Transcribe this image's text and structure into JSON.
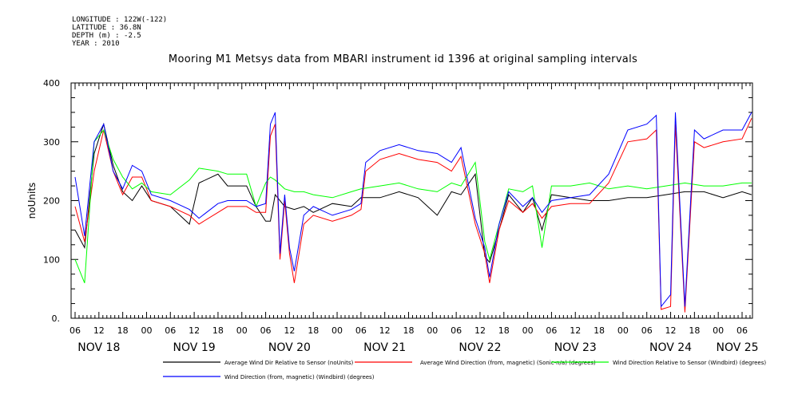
{
  "meta": {
    "longitude": "LONGITUDE : 122W(-122)",
    "latitude": "LATITUDE : 36.8N",
    "depth": "DEPTH (m) : -2.5",
    "year": "YEAR : 2010"
  },
  "chart_data": {
    "type": "line",
    "title": "Mooring M1 Metsys data from MBARI instrument id 1396 at original sampling intervals",
    "ylabel": "noUnits",
    "ylim": [
      0,
      400
    ],
    "yticks": [
      0,
      100,
      200,
      300,
      400
    ],
    "xlim": [
      0,
      7.2
    ],
    "hour_ticks": [
      {
        "x": 0.0,
        "label": "06"
      },
      {
        "x": 0.25,
        "label": "12"
      },
      {
        "x": 0.5,
        "label": "18"
      },
      {
        "x": 0.75,
        "label": "00"
      },
      {
        "x": 1.0,
        "label": "06"
      },
      {
        "x": 1.25,
        "label": "12"
      },
      {
        "x": 1.5,
        "label": "18"
      },
      {
        "x": 1.75,
        "label": "00"
      },
      {
        "x": 2.0,
        "label": "06"
      },
      {
        "x": 2.25,
        "label": "12"
      },
      {
        "x": 2.5,
        "label": "18"
      },
      {
        "x": 2.75,
        "label": "00"
      },
      {
        "x": 3.0,
        "label": "06"
      },
      {
        "x": 3.25,
        "label": "12"
      },
      {
        "x": 3.5,
        "label": "18"
      },
      {
        "x": 3.75,
        "label": "00"
      },
      {
        "x": 4.0,
        "label": "06"
      },
      {
        "x": 4.25,
        "label": "12"
      },
      {
        "x": 4.5,
        "label": "18"
      },
      {
        "x": 4.75,
        "label": "00"
      },
      {
        "x": 5.0,
        "label": "06"
      },
      {
        "x": 5.25,
        "label": "12"
      },
      {
        "x": 5.5,
        "label": "18"
      },
      {
        "x": 5.75,
        "label": "00"
      },
      {
        "x": 6.0,
        "label": "06"
      },
      {
        "x": 6.25,
        "label": "12"
      },
      {
        "x": 6.5,
        "label": "18"
      },
      {
        "x": 6.75,
        "label": "00"
      },
      {
        "x": 7.0,
        "label": "06"
      }
    ],
    "day_labels": [
      {
        "x": 0.25,
        "label": "NOV 18"
      },
      {
        "x": 1.25,
        "label": "NOV 19"
      },
      {
        "x": 2.25,
        "label": "NOV 20"
      },
      {
        "x": 3.25,
        "label": "NOV 21"
      },
      {
        "x": 4.25,
        "label": "NOV 22"
      },
      {
        "x": 5.25,
        "label": "NOV 23"
      },
      {
        "x": 6.25,
        "label": "NOV 24"
      },
      {
        "x": 6.95,
        "label": "NOV 25"
      }
    ],
    "series": [
      {
        "name": "Average Wind Dir Relative to Sensor (noUnits)",
        "color": "#000000",
        "x": [
          0.0,
          0.1,
          0.2,
          0.3,
          0.4,
          0.5,
          0.6,
          0.7,
          0.8,
          1.0,
          1.2,
          1.3,
          1.5,
          1.6,
          1.8,
          1.9,
          2.0,
          2.05,
          2.1,
          2.2,
          2.3,
          2.4,
          2.5,
          2.7,
          2.9,
          3.0,
          3.2,
          3.4,
          3.6,
          3.8,
          3.95,
          4.05,
          4.2,
          4.3,
          4.35,
          4.45,
          4.55,
          4.7,
          4.8,
          4.9,
          5.0,
          5.2,
          5.4,
          5.6,
          5.8,
          6.0,
          6.2,
          6.4,
          6.6,
          6.8,
          7.0,
          7.1
        ],
        "values": [
          150,
          120,
          280,
          330,
          260,
          215,
          200,
          225,
          200,
          190,
          160,
          230,
          245,
          225,
          225,
          190,
          165,
          165,
          210,
          190,
          185,
          190,
          180,
          195,
          190,
          205,
          205,
          215,
          205,
          175,
          215,
          210,
          245,
          105,
          95,
          150,
          210,
          180,
          205,
          150,
          210,
          205,
          200,
          200,
          205,
          205,
          210,
          215,
          215,
          205,
          215,
          210
        ]
      },
      {
        "name": "Average Wind Direction (from, magnetic) (Sonic-n/a) (degrees)",
        "color": "#ff0000",
        "x": [
          0.0,
          0.1,
          0.2,
          0.3,
          0.4,
          0.5,
          0.6,
          0.7,
          0.8,
          1.0,
          1.2,
          1.3,
          1.5,
          1.6,
          1.8,
          1.9,
          2.0,
          2.05,
          2.1,
          2.15,
          2.2,
          2.25,
          2.3,
          2.4,
          2.5,
          2.7,
          2.9,
          3.0,
          3.05,
          3.2,
          3.4,
          3.6,
          3.8,
          3.95,
          4.05,
          4.2,
          4.3,
          4.35,
          4.45,
          4.55,
          4.7,
          4.8,
          4.9,
          5.0,
          5.2,
          5.4,
          5.6,
          5.8,
          6.0,
          6.1,
          6.15,
          6.25,
          6.3,
          6.4,
          6.5,
          6.6,
          6.8,
          7.0,
          7.1
        ],
        "values": [
          190,
          130,
          250,
          320,
          250,
          210,
          240,
          240,
          200,
          190,
          175,
          160,
          180,
          190,
          190,
          180,
          180,
          310,
          330,
          100,
          200,
          110,
          60,
          160,
          175,
          165,
          175,
          185,
          250,
          270,
          280,
          270,
          265,
          250,
          275,
          160,
          110,
          60,
          150,
          200,
          180,
          195,
          170,
          190,
          195,
          195,
          230,
          300,
          305,
          320,
          15,
          20,
          330,
          10,
          300,
          290,
          300,
          305,
          340
        ]
      },
      {
        "name": "Wind Direction Relative to Sensor (Windbird) (degrees)",
        "color": "#00ff00",
        "x": [
          0.0,
          0.1,
          0.2,
          0.3,
          0.4,
          0.5,
          0.6,
          0.7,
          0.8,
          1.0,
          1.2,
          1.3,
          1.5,
          1.6,
          1.8,
          1.9,
          2.0,
          2.05,
          2.1,
          2.2,
          2.3,
          2.4,
          2.5,
          2.7,
          2.9,
          3.0,
          3.2,
          3.4,
          3.6,
          3.8,
          3.95,
          4.05,
          4.2,
          4.3,
          4.35,
          4.45,
          4.55,
          4.7,
          4.8,
          4.9,
          5.0,
          5.2,
          5.4,
          5.6,
          5.8,
          6.0,
          6.2,
          6.4,
          6.6,
          6.8,
          7.0,
          7.1
        ],
        "values": [
          100,
          60,
          300,
          320,
          270,
          240,
          220,
          230,
          215,
          210,
          235,
          255,
          250,
          245,
          245,
          190,
          230,
          240,
          235,
          220,
          215,
          215,
          210,
          205,
          215,
          220,
          225,
          230,
          220,
          215,
          230,
          225,
          265,
          130,
          100,
          160,
          220,
          215,
          225,
          120,
          225,
          225,
          230,
          220,
          225,
          220,
          225,
          230,
          225,
          225,
          230,
          230
        ]
      },
      {
        "name": "Wind Direction (from, magnetic) (Windbird) (degrees)",
        "color": "#0000ff",
        "x": [
          0.0,
          0.1,
          0.2,
          0.3,
          0.4,
          0.5,
          0.6,
          0.7,
          0.8,
          1.0,
          1.2,
          1.3,
          1.5,
          1.6,
          1.8,
          1.9,
          2.0,
          2.05,
          2.1,
          2.15,
          2.2,
          2.25,
          2.3,
          2.4,
          2.5,
          2.7,
          2.9,
          3.0,
          3.05,
          3.2,
          3.4,
          3.6,
          3.8,
          3.95,
          4.05,
          4.2,
          4.3,
          4.35,
          4.45,
          4.55,
          4.7,
          4.8,
          4.9,
          5.0,
          5.2,
          5.4,
          5.6,
          5.8,
          6.0,
          6.1,
          6.15,
          6.25,
          6.3,
          6.4,
          6.5,
          6.6,
          6.8,
          7.0,
          7.1
        ],
        "values": [
          240,
          140,
          300,
          330,
          250,
          220,
          260,
          250,
          210,
          200,
          185,
          170,
          195,
          200,
          200,
          190,
          195,
          330,
          350,
          110,
          210,
          120,
          80,
          175,
          190,
          175,
          185,
          195,
          265,
          285,
          295,
          285,
          280,
          265,
          290,
          170,
          120,
          70,
          160,
          215,
          190,
          205,
          180,
          200,
          205,
          210,
          245,
          320,
          330,
          345,
          20,
          40,
          350,
          20,
          320,
          305,
          320,
          320,
          350
        ]
      }
    ]
  }
}
